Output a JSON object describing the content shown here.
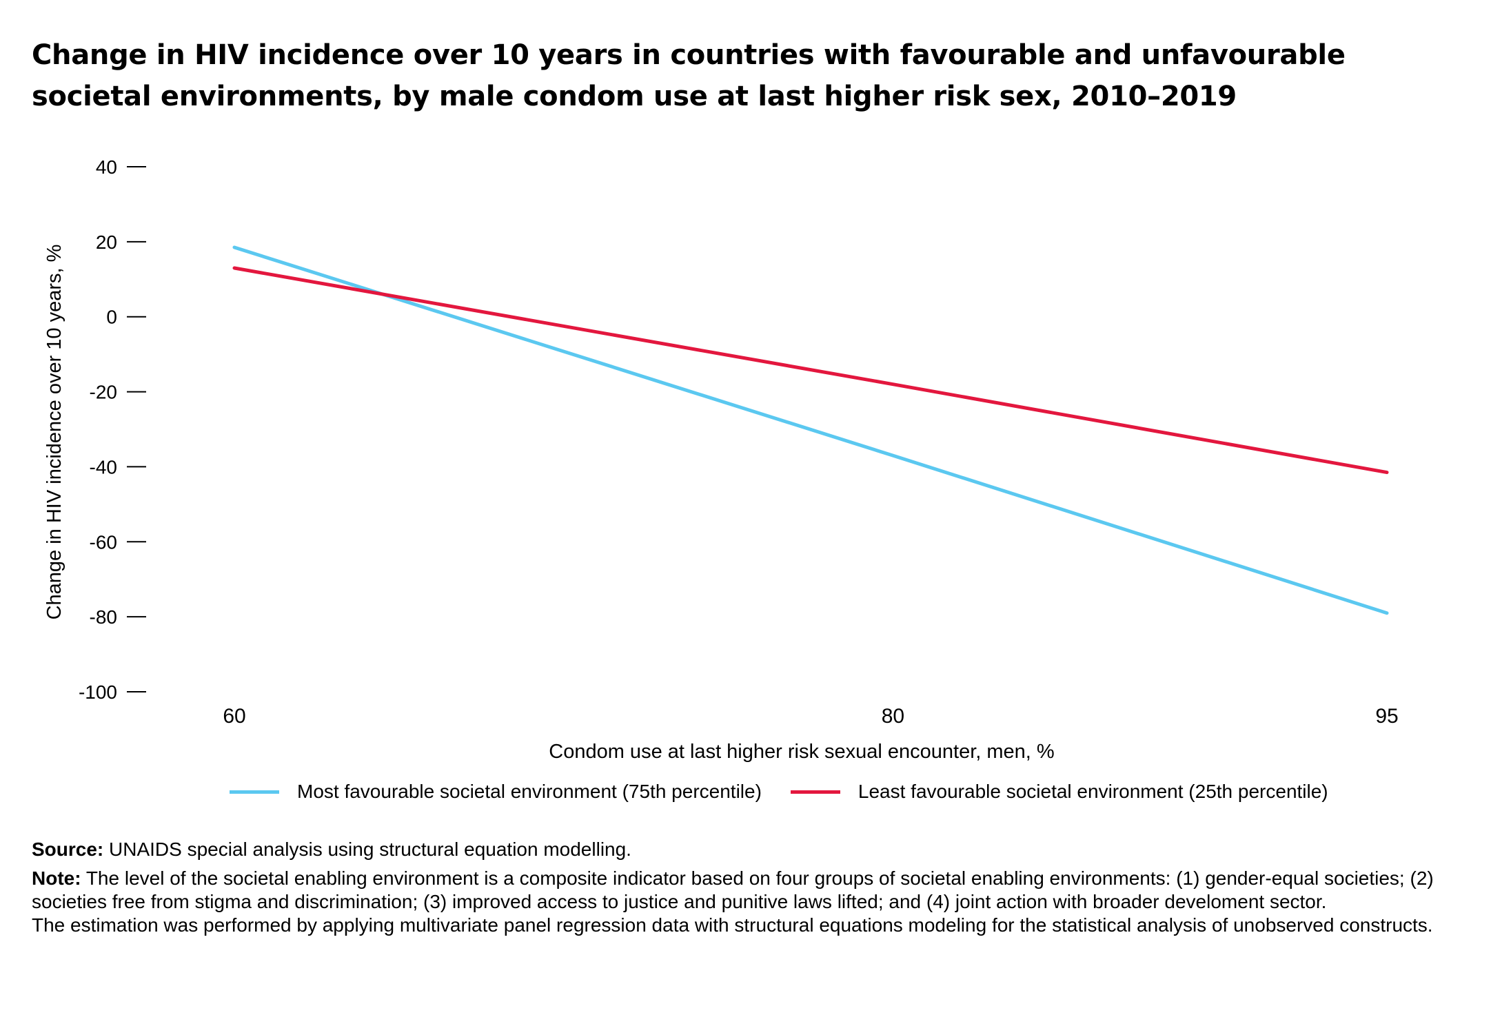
{
  "title": "Change in HIV incidence over 10 years in countries with favourable and unfavourable societal environments, by male condom use at last higher risk sex, 2010–2019",
  "chart_data": {
    "type": "line",
    "title": "Change in HIV incidence over 10 years in countries with favourable and unfavourable societal environments, by male condom use at last higher risk sex, 2010–2019",
    "xlabel": "Condom use at last higher risk sexual encounter, men, %",
    "ylabel": "Change in HIV incidence over 10 years, %",
    "x": [
      60,
      80,
      95
    ],
    "x_ticks": [
      "60",
      "80",
      "95"
    ],
    "ylim": [
      -100,
      40
    ],
    "y_ticks": [
      40,
      20,
      0,
      -20,
      -40,
      -60,
      -80,
      -100
    ],
    "grid": false,
    "legend_position": "bottom",
    "series": [
      {
        "name": "Most favourable societal environment (75th percentile)",
        "values": [
          18.5,
          -37,
          -79
        ],
        "color": "#5bc8f0"
      },
      {
        "name": "Least favourable societal environment (25th percentile)",
        "values": [
          13,
          -18,
          -41.5
        ],
        "color": "#e3173e"
      }
    ]
  },
  "source": {
    "label": "Source:",
    "text": "UNAIDS special analysis using structural equation modelling."
  },
  "note": {
    "label": "Note:",
    "text": "The level of the societal enabling environment is a composite indicator based on four groups of societal enabling environments: (1) gender-equal societies; (2) societies free from stigma and discrimination; (3) improved access to justice and punitive laws lifted; and (4) joint action with broader develoment sector.",
    "text2": "The estimation was performed by applying multivariate panel regression data with structural equations modeling for the statistical analysis of unobserved constructs."
  }
}
